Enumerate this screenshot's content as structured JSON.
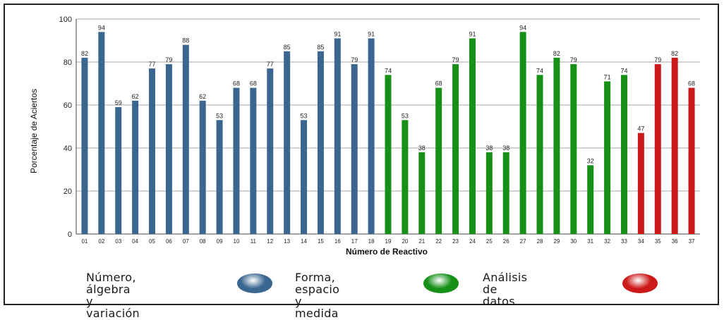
{
  "chart_data": {
    "type": "bar",
    "ylabel": "Porcentaje de Aciertos",
    "xlabel": "Número de Reactivo",
    "ylim": [
      0,
      100
    ],
    "yticks": [
      "0",
      "20",
      "40",
      "60",
      "80",
      "100"
    ],
    "grid": "horizontal",
    "categories": [
      "01",
      "02",
      "03",
      "04",
      "05",
      "06",
      "07",
      "08",
      "09",
      "10",
      "11",
      "12",
      "13",
      "14",
      "15",
      "16",
      "17",
      "18",
      "19",
      "20",
      "21",
      "22",
      "23",
      "24",
      "25",
      "26",
      "27",
      "28",
      "29",
      "30",
      "31",
      "32",
      "33",
      "34",
      "35",
      "36",
      "37"
    ],
    "values": [
      82,
      94,
      59,
      62,
      77,
      79,
      88,
      62,
      53,
      68,
      68,
      77,
      85,
      53,
      85,
      91,
      79,
      91,
      74,
      53,
      38,
      68,
      79,
      91,
      38,
      38,
      94,
      74,
      82,
      79,
      32,
      71,
      74,
      47,
      79,
      82,
      68
    ],
    "groups": [
      1,
      1,
      1,
      1,
      1,
      1,
      1,
      1,
      1,
      1,
      1,
      1,
      1,
      1,
      1,
      1,
      1,
      1,
      2,
      2,
      2,
      2,
      2,
      2,
      2,
      2,
      2,
      2,
      2,
      2,
      2,
      2,
      2,
      3,
      3,
      3,
      3
    ],
    "legend": [
      {
        "label": "Número, álgebra\ny variación",
        "color": "#3a6690"
      },
      {
        "label": "Forma, espacio\ny medida",
        "color": "#179017"
      },
      {
        "label": "Análisis de datos",
        "color": "#cc1a1a"
      }
    ]
  }
}
